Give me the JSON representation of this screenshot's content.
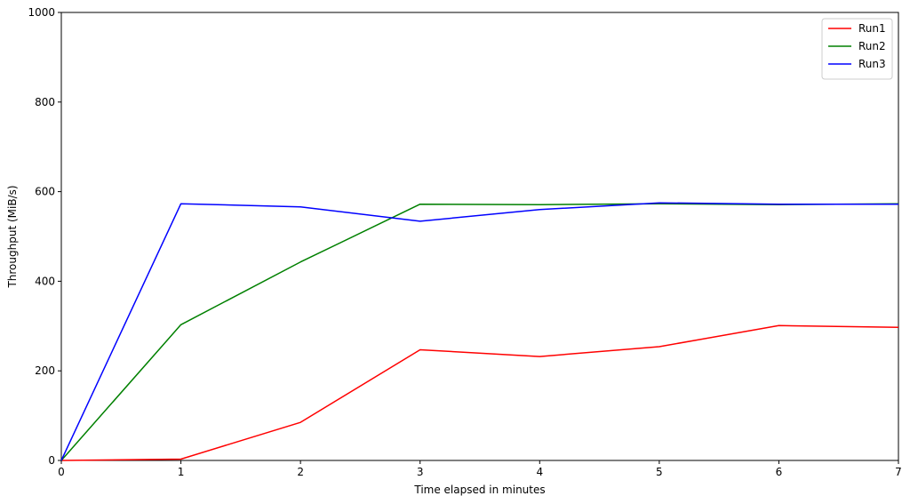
{
  "chart_data": {
    "type": "line",
    "title": "",
    "xlabel": "Time elapsed in minutes",
    "ylabel": "Throughput (MiB/s)",
    "x": [
      0,
      1,
      2,
      3,
      4,
      5,
      6,
      7
    ],
    "xlim": [
      0,
      7
    ],
    "ylim": [
      0,
      1000
    ],
    "xticks": [
      "0",
      "1",
      "2",
      "3",
      "4",
      "5",
      "6",
      "7"
    ],
    "yticks": [
      "0",
      "200",
      "400",
      "600",
      "800",
      "1000"
    ],
    "grid": false,
    "legend_position": "top-right",
    "series": [
      {
        "name": "Run1",
        "color": "#ff0000",
        "values": [
          0,
          3,
          85,
          247,
          232,
          254,
          301,
          297
        ]
      },
      {
        "name": "Run2",
        "color": "#008000",
        "values": [
          0,
          303,
          443,
          572,
          571,
          573,
          571,
          573
        ]
      },
      {
        "name": "Run3",
        "color": "#0000ff",
        "values": [
          0,
          573,
          566,
          534,
          560,
          575,
          572,
          572
        ]
      }
    ]
  }
}
